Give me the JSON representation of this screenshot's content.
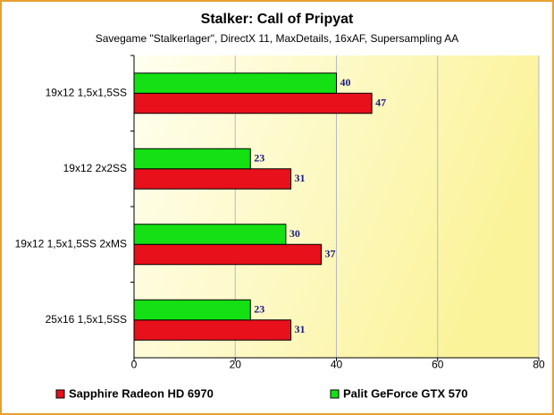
{
  "chart_data": {
    "type": "bar",
    "orientation": "horizontal",
    "title": "Stalker: Call of Pripyat",
    "subtitle": "Savegame \"Stalkerlager\", DirectX 11, MaxDetails, 16xAF, Supersampling AA",
    "categories": [
      "19x12 1,5x1,5SS",
      "19x12 2x2SS",
      "19x12 1,5x1,5SS 2xMS",
      "25x16 1,5x1,5SS"
    ],
    "series": [
      {
        "name": "Sapphire Radeon HD 6970",
        "color": "#e8101a",
        "values": [
          47,
          31,
          37,
          31
        ]
      },
      {
        "name": "Palit GeForce GTX 570",
        "color": "#14e014",
        "values": [
          40,
          23,
          30,
          23
        ]
      }
    ],
    "xlim": [
      0,
      80
    ],
    "xticks": [
      0,
      20,
      40,
      60,
      80
    ],
    "grid": true
  }
}
